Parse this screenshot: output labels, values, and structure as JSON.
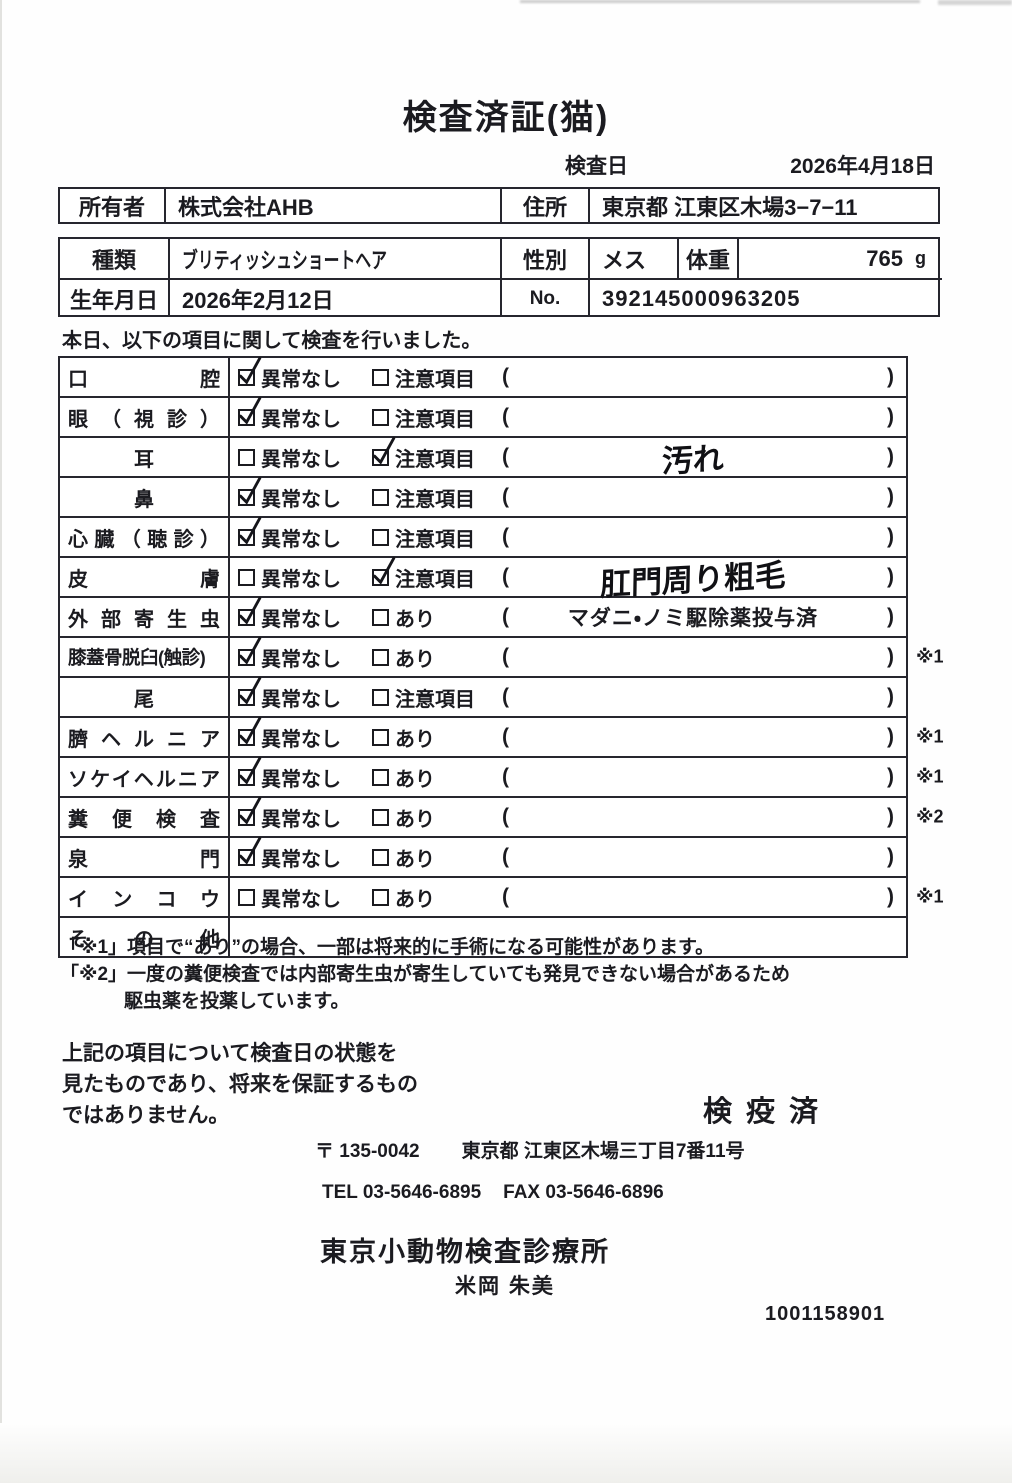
{
  "title": "検査済証(猫)",
  "inspection_date": {
    "label": "検査日",
    "value": "2026年4月18日"
  },
  "owner_table": {
    "owner_label": "所有者",
    "owner_value": "株式会社AHB",
    "address_label": "住所",
    "address_value": "東京都 江東区木場3−7−11"
  },
  "info_table": {
    "breed_label": "種類",
    "breed_value": "ブリティッシュショートヘア",
    "sex_label": "性別",
    "sex_value": "メス",
    "weight_label": "体重",
    "weight_value": "765",
    "weight_unit": "g",
    "birth_label": "生年月日",
    "birth_value": "2026年2月12日",
    "no_label": "No.",
    "no_value": "392145000963205"
  },
  "statement": "本日、以下の項目に関して検査を行いました。",
  "exam_table": {
    "rows": [
      {
        "item": "口腔",
        "align": "justify",
        "has_paren": true,
        "options": [
          {
            "label": "異常なし",
            "checked": true
          },
          {
            "label": "注意項目",
            "checked": false
          }
        ],
        "note": "",
        "note_style": "",
        "mark": ""
      },
      {
        "item": "眼（視診）",
        "align": "justify",
        "has_paren": true,
        "options": [
          {
            "label": "異常なし",
            "checked": true
          },
          {
            "label": "注意項目",
            "checked": false
          }
        ],
        "note": "",
        "note_style": "",
        "mark": ""
      },
      {
        "item": "耳",
        "align": "center",
        "has_paren": true,
        "options": [
          {
            "label": "異常なし",
            "checked": false
          },
          {
            "label": "注意項目",
            "checked": true
          }
        ],
        "note": "汚れ",
        "note_style": "hand",
        "mark": ""
      },
      {
        "item": "鼻",
        "align": "center",
        "has_paren": true,
        "options": [
          {
            "label": "異常なし",
            "checked": true
          },
          {
            "label": "注意項目",
            "checked": false
          }
        ],
        "note": "",
        "note_style": "",
        "mark": ""
      },
      {
        "item": "心臓（聴診）",
        "align": "justify",
        "has_paren": true,
        "options": [
          {
            "label": "異常なし",
            "checked": true
          },
          {
            "label": "注意項目",
            "checked": false
          }
        ],
        "note": "",
        "note_style": "",
        "mark": ""
      },
      {
        "item": "皮膚",
        "align": "justify",
        "has_paren": true,
        "options": [
          {
            "label": "異常なし",
            "checked": false
          },
          {
            "label": "注意項目",
            "checked": true
          }
        ],
        "note": "肛門周り粗毛",
        "note_style": "hand",
        "mark": ""
      },
      {
        "item": "外部寄生虫",
        "align": "justify",
        "has_paren": true,
        "options": [
          {
            "label": "異常なし",
            "checked": true
          },
          {
            "label": "あり",
            "checked": false
          }
        ],
        "note": "マダニ・ノミ駆除薬投与済",
        "note_style": "print",
        "mark": ""
      },
      {
        "item": "膝蓋骨脱臼(触診)",
        "align": "plain",
        "has_paren": true,
        "options": [
          {
            "label": "異常なし",
            "checked": true
          },
          {
            "label": "あり",
            "checked": false
          }
        ],
        "note": "",
        "note_style": "",
        "mark": "※1"
      },
      {
        "item": "尾",
        "align": "center",
        "has_paren": true,
        "options": [
          {
            "label": "異常なし",
            "checked": true
          },
          {
            "label": "注意項目",
            "checked": false
          }
        ],
        "note": "",
        "note_style": "",
        "mark": ""
      },
      {
        "item": "臍ヘルニア",
        "align": "justify",
        "has_paren": true,
        "options": [
          {
            "label": "異常なし",
            "checked": true
          },
          {
            "label": "あり",
            "checked": false
          }
        ],
        "note": "",
        "note_style": "",
        "mark": "※1"
      },
      {
        "item": "ソケイヘルニア",
        "align": "justify",
        "has_paren": true,
        "options": [
          {
            "label": "異常なし",
            "checked": true
          },
          {
            "label": "あり",
            "checked": false
          }
        ],
        "note": "",
        "note_style": "",
        "mark": "※1"
      },
      {
        "item": "糞便検査",
        "align": "justify",
        "has_paren": true,
        "options": [
          {
            "label": "異常なし",
            "checked": true
          },
          {
            "label": "あり",
            "checked": false
          }
        ],
        "note": "",
        "note_style": "",
        "mark": "※2"
      },
      {
        "item": "泉門",
        "align": "justify",
        "has_paren": true,
        "options": [
          {
            "label": "異常なし",
            "checked": true
          },
          {
            "label": "あり",
            "checked": false
          }
        ],
        "note": "",
        "note_style": "",
        "mark": ""
      },
      {
        "item": "インコウ",
        "align": "justify",
        "has_paren": true,
        "options": [
          {
            "label": "異常なし",
            "checked": false
          },
          {
            "label": "あり",
            "checked": false
          }
        ],
        "note": "",
        "note_style": "",
        "mark": "※1"
      },
      {
        "item": "その他",
        "align": "justify",
        "has_paren": false,
        "options": [],
        "note": "",
        "note_style": "",
        "mark": ""
      }
    ]
  },
  "footnotes": [
    "「※1」項目で“あり”の場合、一部は将来的に手術になる可能性があります。",
    "「※2」一度の糞便検査では内部寄生虫が寄生していても発見できない場合があるため",
    "駆虫薬を投薬しています。"
  ],
  "disclaimer_lines": [
    "上記の項目について検査日の状態を",
    "見たものであり、将来を保証するもの",
    "ではありません。"
  ],
  "quarantine_stamp": "検疫済",
  "clinic": {
    "postal": "〒 135-0042",
    "address": "東京都 江東区木場三丁目7番11号",
    "tel": "TEL 03-5646-6895",
    "fax": "FAX 03-5646-6896",
    "name": "東京小動物検査診療所",
    "veterinarian": "米岡 朱美"
  },
  "document_number": "1001158901"
}
